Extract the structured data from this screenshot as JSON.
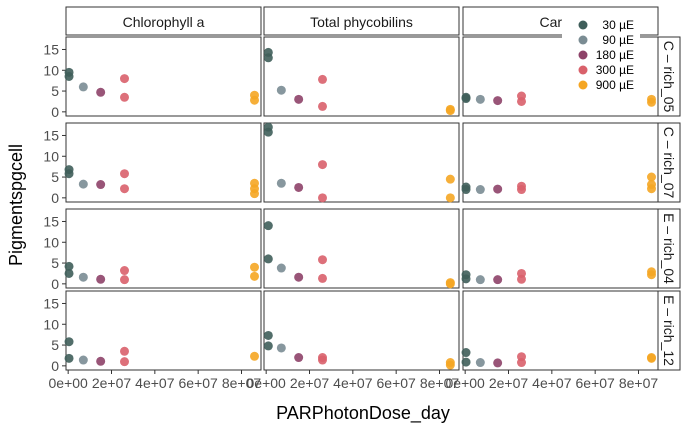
{
  "chart_data": {
    "type": "scatter",
    "xlabel": "PARPhotonDose_day",
    "ylabel": "Pigmentspgcell",
    "xlim": [
      -1000000,
      89000000
    ],
    "xticks": [
      0,
      20000000,
      40000000,
      60000000,
      80000000
    ],
    "xtick_labels": [
      "0e+00",
      "2e+07",
      "4e+07",
      "6e+07",
      "8e+07"
    ],
    "ylim": [
      -1,
      18
    ],
    "yticks": [
      0,
      5,
      10,
      15
    ],
    "ytick_labels": [
      "0",
      "5",
      "10",
      "15"
    ],
    "columns": [
      "Chlorophyll a",
      "Total phycobilins",
      "Carotenoids"
    ],
    "column_labels": [
      "Chlorophyll a",
      "Total phycobilins",
      "Carote"
    ],
    "rows": [
      "C – rich_05",
      "C – rich_07",
      "E – rich_04",
      "E – rich_12"
    ],
    "legend": {
      "placement": "top-right",
      "entries": [
        {
          "label": "30 µE",
          "color": "#3f5e5a"
        },
        {
          "label": "90 µE",
          "color": "#7a8c93"
        },
        {
          "label": "180 µE",
          "color": "#8e4369"
        },
        {
          "label": "300 µE",
          "color": "#d9616b"
        },
        {
          "label": "900 µE",
          "color": "#f5a623"
        }
      ]
    },
    "points": [
      [
        [
          [
            400000,
            9.5,
            0
          ],
          [
            400000,
            8.5,
            0
          ],
          [
            7000000,
            6.0,
            1
          ],
          [
            15000000,
            4.7,
            2
          ],
          [
            26000000,
            8.0,
            3
          ],
          [
            26000000,
            3.5,
            3
          ],
          [
            86000000,
            4.0,
            4
          ],
          [
            86000000,
            2.8,
            4
          ]
        ],
        [
          [
            1000000,
            14.3,
            0
          ],
          [
            1000000,
            13.0,
            0
          ],
          [
            7000000,
            5.2,
            1
          ],
          [
            15000000,
            3.0,
            2
          ],
          [
            26000000,
            7.8,
            3
          ],
          [
            26000000,
            1.3,
            3
          ],
          [
            85000000,
            0.6,
            4
          ],
          [
            85000000,
            0.3,
            4
          ]
        ],
        [
          [
            400000,
            3.5,
            0
          ],
          [
            400000,
            3.2,
            0
          ],
          [
            7000000,
            3.0,
            1
          ],
          [
            15000000,
            2.7,
            2
          ],
          [
            26000000,
            3.8,
            3
          ],
          [
            26000000,
            2.5,
            3
          ],
          [
            86000000,
            3.0,
            4
          ],
          [
            86000000,
            2.3,
            4
          ]
        ]
      ],
      [
        [
          [
            400000,
            6.8,
            0
          ],
          [
            400000,
            5.8,
            0
          ],
          [
            7000000,
            3.3,
            1
          ],
          [
            15000000,
            3.2,
            2
          ],
          [
            26000000,
            5.8,
            3
          ],
          [
            26000000,
            2.2,
            3
          ],
          [
            86000000,
            3.5,
            4
          ],
          [
            86000000,
            2.2,
            4
          ],
          [
            86000000,
            1.0,
            4
          ]
        ],
        [
          [
            1000000,
            17.0,
            0
          ],
          [
            1000000,
            15.8,
            0
          ],
          [
            7000000,
            3.5,
            1
          ],
          [
            15000000,
            2.5,
            2
          ],
          [
            26000000,
            8.0,
            3
          ],
          [
            26000000,
            0.0,
            3
          ],
          [
            85000000,
            4.5,
            4
          ],
          [
            85000000,
            0.0,
            4
          ]
        ],
        [
          [
            400000,
            2.6,
            0
          ],
          [
            400000,
            2.0,
            0
          ],
          [
            7000000,
            2.0,
            1
          ],
          [
            15000000,
            2.1,
            2
          ],
          [
            26000000,
            2.8,
            3
          ],
          [
            26000000,
            2.0,
            3
          ],
          [
            86000000,
            5.0,
            4
          ],
          [
            86000000,
            3.2,
            4
          ],
          [
            86000000,
            2.2,
            4
          ]
        ]
      ],
      [
        [
          [
            400000,
            4.2,
            0
          ],
          [
            400000,
            2.5,
            0
          ],
          [
            7000000,
            1.6,
            1
          ],
          [
            15000000,
            1.1,
            2
          ],
          [
            26000000,
            3.2,
            3
          ],
          [
            26000000,
            1.0,
            3
          ],
          [
            86000000,
            4.0,
            4
          ],
          [
            86000000,
            1.8,
            4
          ]
        ],
        [
          [
            1000000,
            14.0,
            0
          ],
          [
            1000000,
            6.0,
            0
          ],
          [
            7000000,
            3.8,
            1
          ],
          [
            15000000,
            1.6,
            2
          ],
          [
            26000000,
            5.8,
            3
          ],
          [
            26000000,
            1.3,
            3
          ],
          [
            85000000,
            0.3,
            4
          ],
          [
            85000000,
            0.0,
            4
          ]
        ],
        [
          [
            400000,
            2.2,
            0
          ],
          [
            400000,
            1.2,
            0
          ],
          [
            7000000,
            1.0,
            1
          ],
          [
            15000000,
            1.0,
            2
          ],
          [
            26000000,
            2.5,
            3
          ],
          [
            26000000,
            1.1,
            3
          ],
          [
            86000000,
            2.9,
            4
          ],
          [
            86000000,
            2.2,
            4
          ]
        ]
      ],
      [
        [
          [
            400000,
            5.8,
            0
          ],
          [
            400000,
            1.8,
            0
          ],
          [
            7000000,
            1.4,
            1
          ],
          [
            15000000,
            1.1,
            2
          ],
          [
            26000000,
            3.5,
            3
          ],
          [
            26000000,
            1.0,
            3
          ],
          [
            86000000,
            2.3,
            4
          ]
        ],
        [
          [
            1000000,
            7.3,
            0
          ],
          [
            1000000,
            4.8,
            0
          ],
          [
            7000000,
            4.3,
            1
          ],
          [
            15000000,
            2.0,
            2
          ],
          [
            26000000,
            2.0,
            3
          ],
          [
            26000000,
            1.4,
            3
          ],
          [
            85000000,
            0.8,
            4
          ],
          [
            85000000,
            0.2,
            4
          ]
        ],
        [
          [
            400000,
            3.2,
            0
          ],
          [
            400000,
            0.9,
            0
          ],
          [
            7000000,
            0.8,
            1
          ],
          [
            15000000,
            0.7,
            2
          ],
          [
            26000000,
            2.2,
            3
          ],
          [
            26000000,
            0.8,
            3
          ],
          [
            86000000,
            2.0,
            4
          ],
          [
            86000000,
            1.8,
            4
          ]
        ]
      ]
    ]
  }
}
